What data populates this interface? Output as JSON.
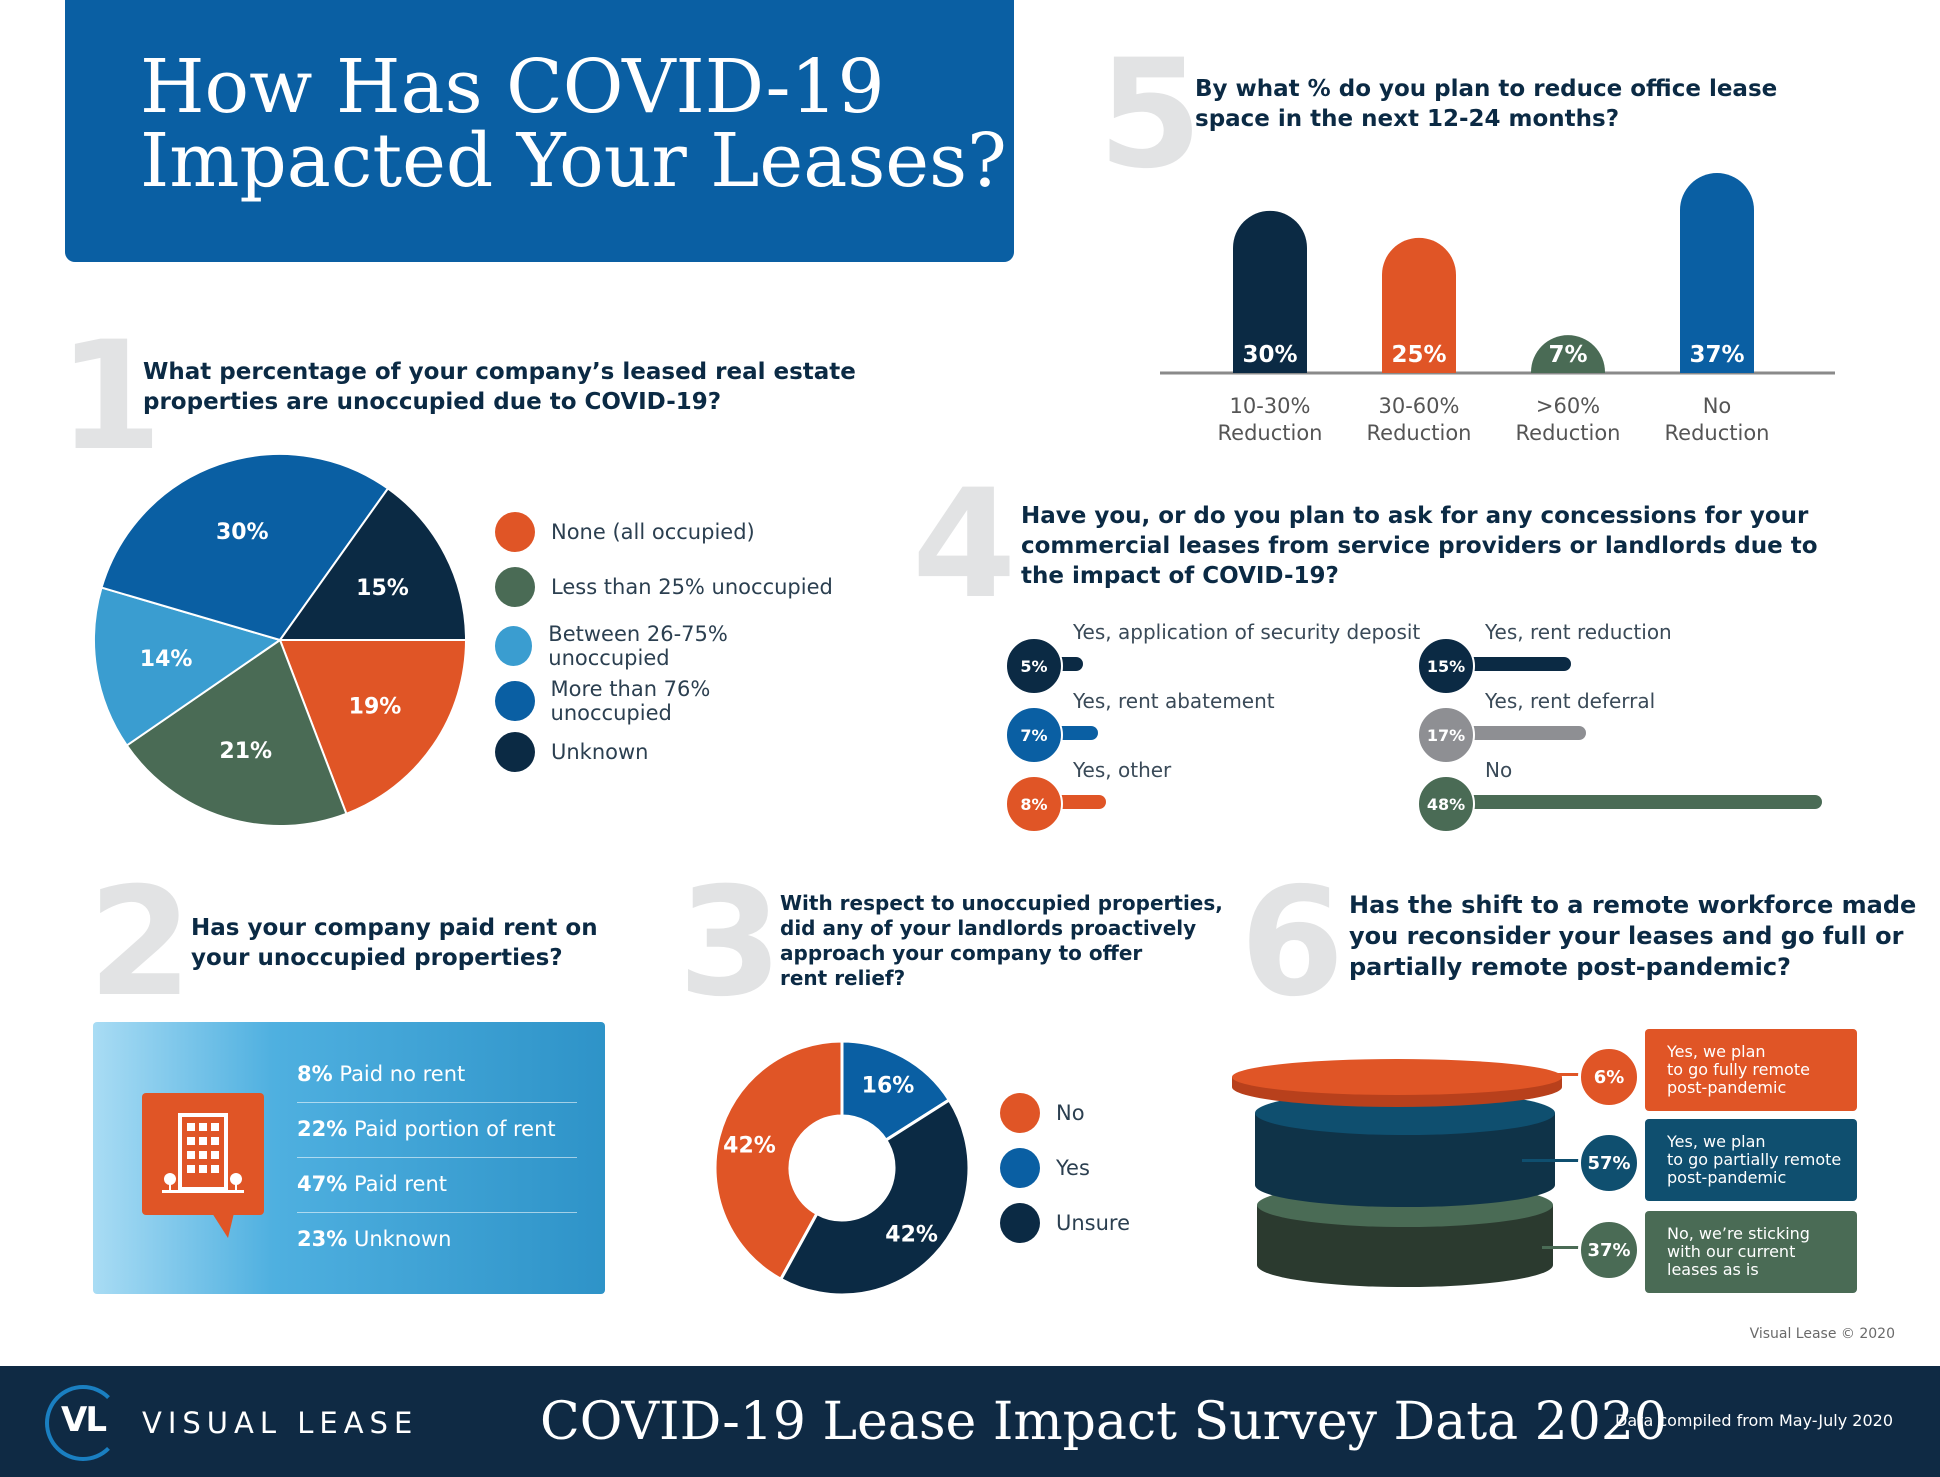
{
  "title": "How Has COVID-19\nImpacted Your Leases?",
  "q1": {
    "num": "1",
    "question": "What percentage of your company’s leased real estate\nproperties are unoccupied due to COVID-19?",
    "legend": [
      {
        "label": "None (all occupied)",
        "color": "#e05526"
      },
      {
        "label": "Less than 25% unoccupied",
        "color": "#4a6b55"
      },
      {
        "label": "Between 26-75% unoccupied",
        "color": "#3a9dd0"
      },
      {
        "label": "More than 76% unoccupied",
        "color": "#0a5fa3"
      },
      {
        "label": "Unknown",
        "color": "#0b2a44"
      }
    ]
  },
  "q2": {
    "num": "2",
    "question": "Has your company paid rent on\nyour unoccupied properties?",
    "rows": [
      {
        "pct": "8%",
        "label": "Paid no rent"
      },
      {
        "pct": "22%",
        "label": "Paid portion of rent"
      },
      {
        "pct": "47%",
        "label": "Paid rent"
      },
      {
        "pct": "23%",
        "label": "Unknown"
      }
    ]
  },
  "q3": {
    "num": "3",
    "question": "With respect to unoccupied properties,\ndid any of your landlords proactively\napproach your company to offer\nrent relief?",
    "legend": [
      {
        "label": "No",
        "color": "#e05526"
      },
      {
        "label": "Yes",
        "color": "#0a5fa3"
      },
      {
        "label": "Unsure",
        "color": "#0b2a44"
      }
    ]
  },
  "q4": {
    "num": "4",
    "question": "Have you, or do you plan to ask for any concessions for your\ncommercial leases from service providers or landlords due to\nthe impact of COVID-19?"
  },
  "q5": {
    "num": "5",
    "question": "By what % do you plan to reduce office lease\nspace in the next 12-24 months?"
  },
  "q6": {
    "num": "6",
    "question": "Has the shift to a remote workforce made\nyou reconsider your leases and go full or\npartially remote post-pandemic?",
    "items": [
      {
        "pct": "6%",
        "label": "Yes, we plan\nto go fully remote\npost-pandemic",
        "color": "#e05526"
      },
      {
        "pct": "57%",
        "label": "Yes, we plan\nto go partially remote\npost-pandemic",
        "color": "#0f4f6f"
      },
      {
        "pct": "37%",
        "label": "No, we’re sticking\nwith our current\nleases as is",
        "color": "#4a6b55"
      }
    ]
  },
  "chart_data": [
    {
      "type": "pie",
      "labels": [
        "None (all occupied)",
        "Less than 25% unoccupied",
        "Between 26-75% unoccupied",
        "More than 76% unoccupied",
        "Unknown"
      ],
      "values": [
        19,
        21,
        14,
        30,
        15
      ],
      "value_labels": [
        "19%",
        "21%",
        "14%",
        "30%",
        "15%"
      ],
      "colors": [
        "#e05526",
        "#4a6b55",
        "#3a9dd0",
        "#0a5fa3",
        "#0b2a44"
      ]
    },
    {
      "type": "pie",
      "donut": true,
      "labels": [
        "No",
        "Yes",
        "Unsure"
      ],
      "values": [
        42,
        16,
        42
      ],
      "value_labels": [
        "42%",
        "16%",
        "42%"
      ],
      "colors": [
        "#e05526",
        "#0a5fa3",
        "#0b2a44"
      ]
    },
    {
      "type": "bar",
      "categories": [
        "10-30%\nReduction",
        "30-60%\nReduction",
        ">60%\nReduction",
        "No\nReduction"
      ],
      "values": [
        30,
        25,
        7,
        37
      ],
      "value_labels": [
        "30%",
        "25%",
        "7%",
        "37%"
      ],
      "colors": [
        "#0b2a44",
        "#e05526",
        "#4a6b55",
        "#0a5fa3"
      ]
    },
    {
      "type": "bar",
      "orientation": "horizontal",
      "categories": [
        "Yes, application of security deposit",
        "Yes, rent abatement",
        "Yes, other",
        "Yes, rent reduction",
        "Yes, rent deferral",
        "No"
      ],
      "values": [
        5,
        7,
        8,
        15,
        17,
        48
      ],
      "value_labels": [
        "5%",
        "7%",
        "8%",
        "15%",
        "17%",
        "48%"
      ],
      "colors": [
        "#0b2a44",
        "#0a5fa3",
        "#e05526",
        "#0b2a44",
        "#8e8f93",
        "#4a6b55"
      ]
    }
  ],
  "credit": "Visual Lease © 2020",
  "footer": {
    "logo": "VL",
    "brand": "VISUAL LEASE",
    "title": "COVID-19 Lease Impact Survey Data 2020",
    "note": "Data compiled from May-July 2020"
  }
}
